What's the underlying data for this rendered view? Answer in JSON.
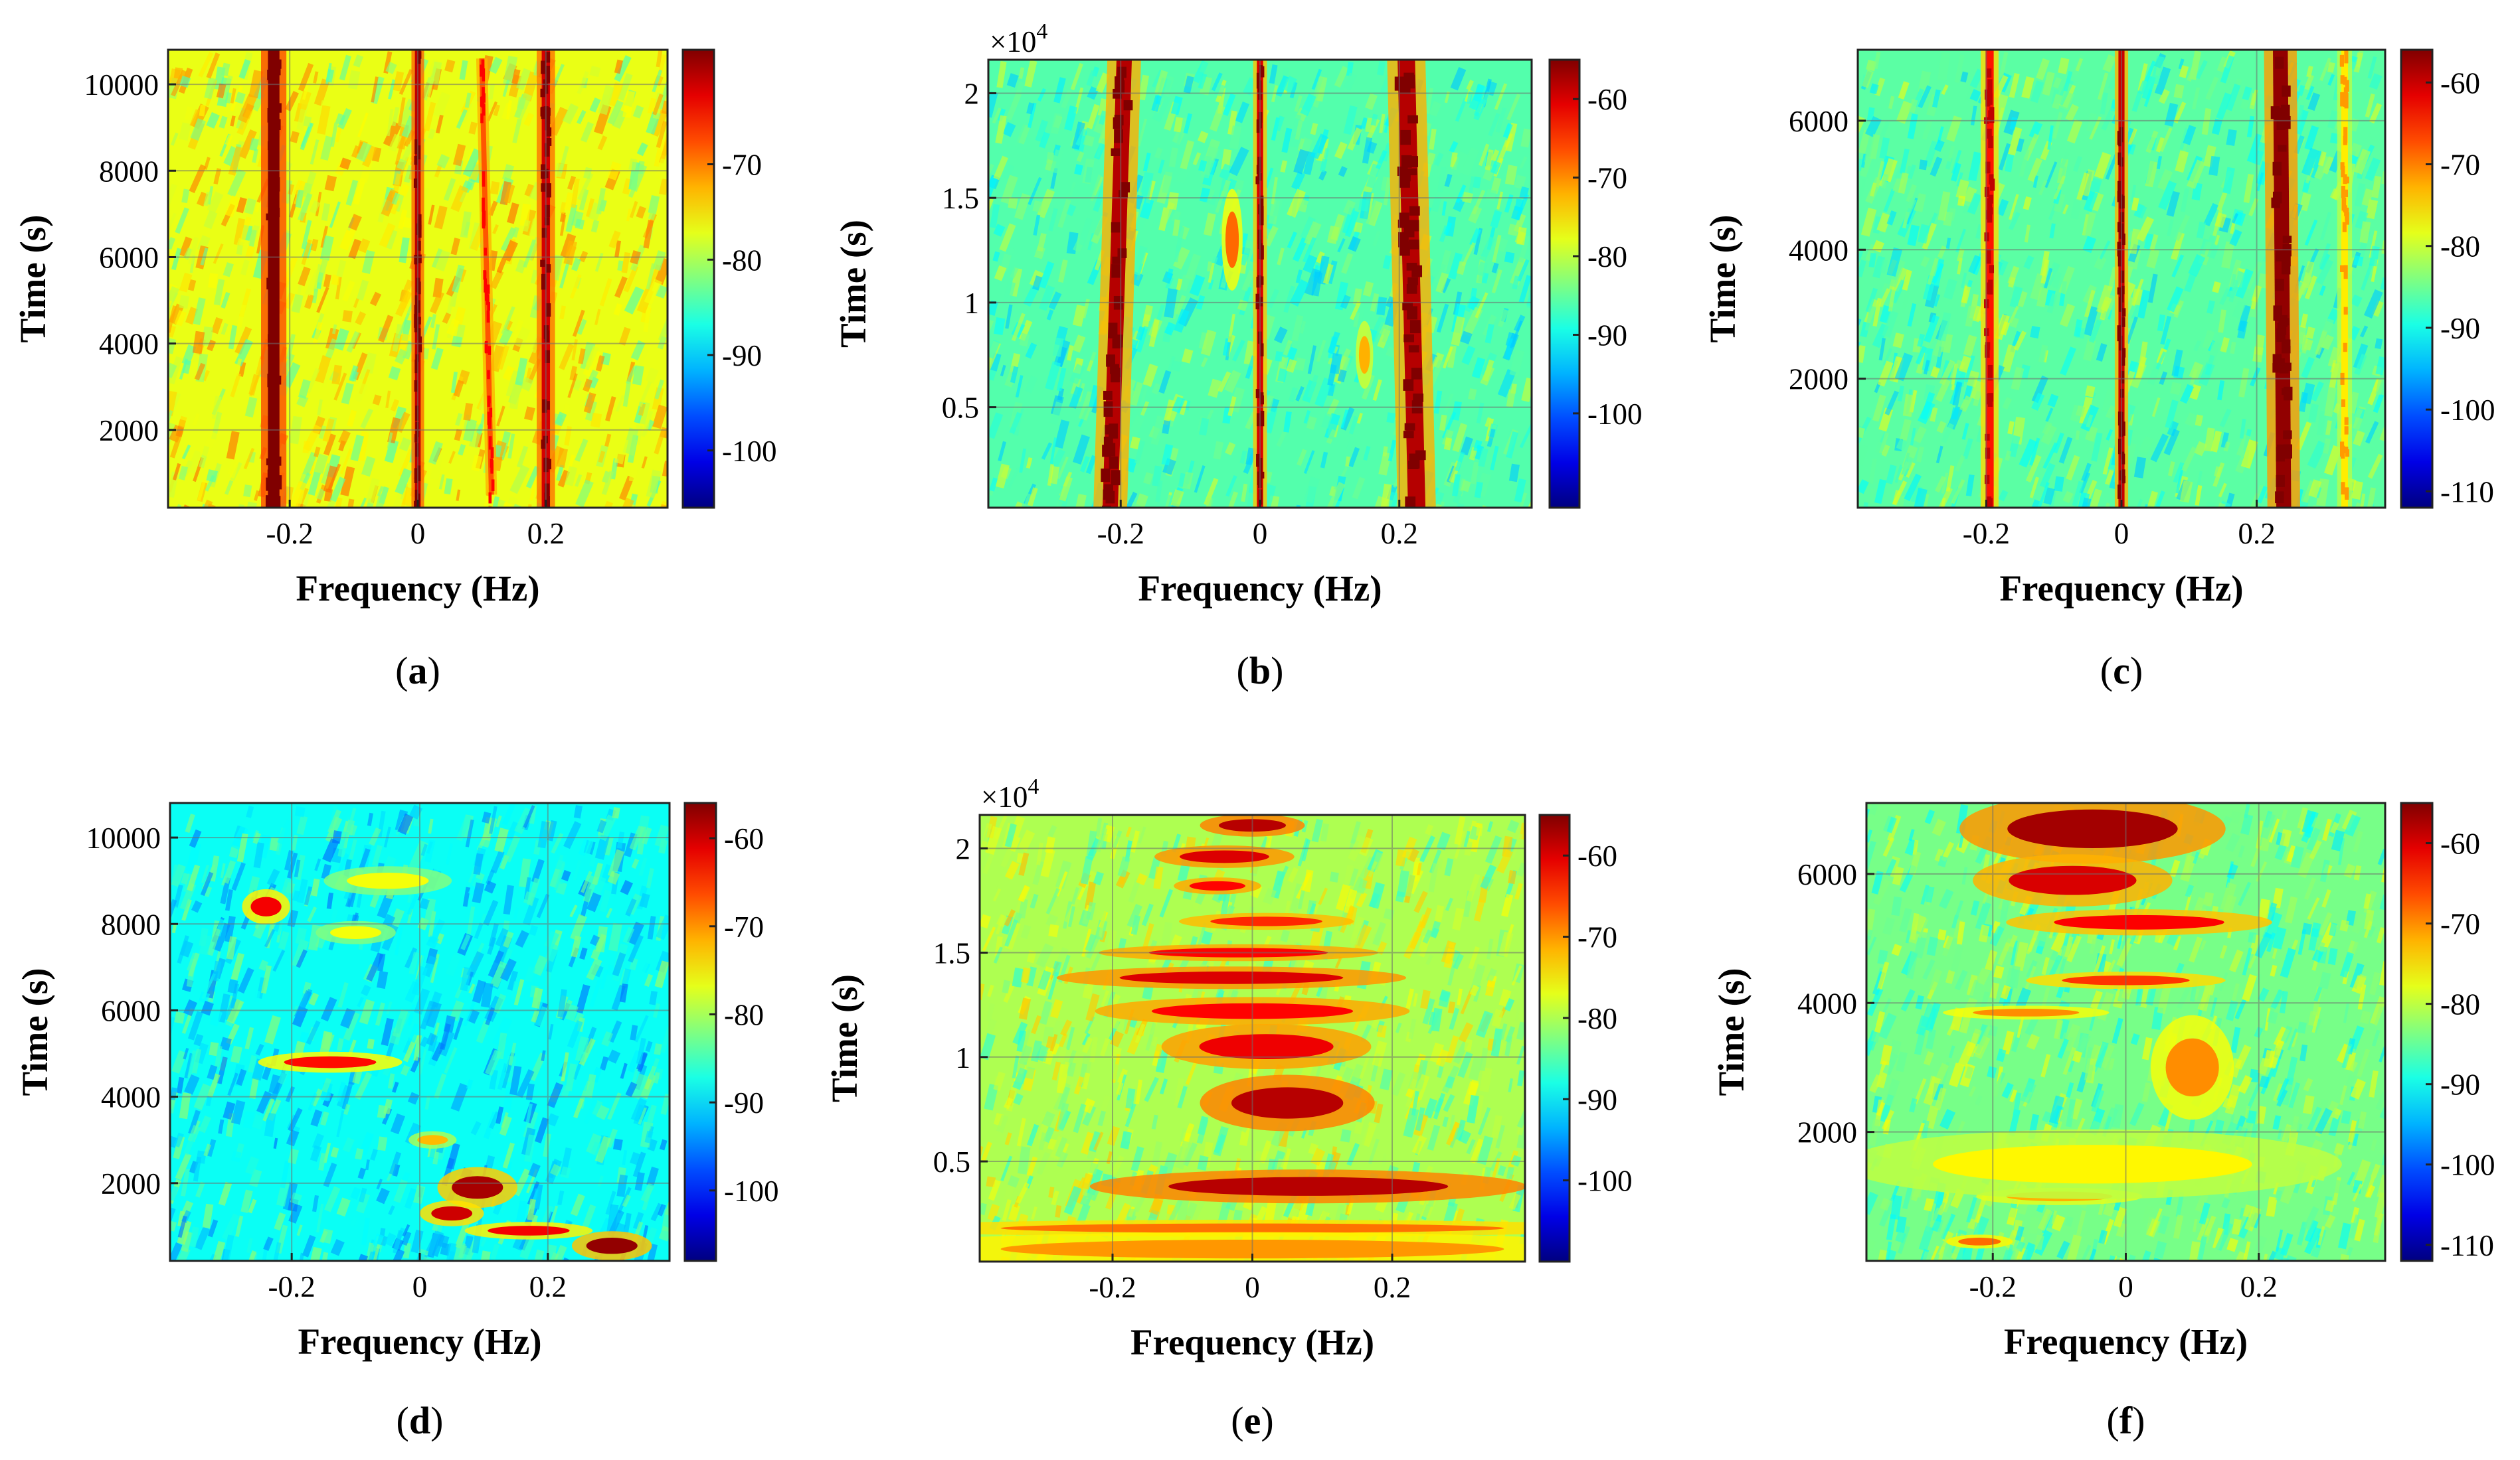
{
  "figure": {
    "panels": [
      "a",
      "b",
      "c",
      "d",
      "e",
      "f"
    ]
  },
  "chart_data": [
    {
      "panel": "a",
      "type": "heatmap",
      "caption": "a",
      "xlabel": "Frequency (Hz)",
      "ylabel": "Time (s)",
      "xlim": [
        -0.39,
        0.39
      ],
      "ylim": [
        200,
        10800
      ],
      "x_ticks": [
        -0.2,
        0,
        0.2
      ],
      "x_tick_labels": [
        "-0.2",
        "0",
        "0.2"
      ],
      "y_ticks": [
        2000,
        4000,
        6000,
        8000,
        10000
      ],
      "y_tick_labels": [
        "2000",
        "4000",
        "6000",
        "8000",
        "10000"
      ],
      "y_exponent": "",
      "grid": true,
      "colorbar": {
        "clim": [
          -106,
          -58
        ],
        "ticks": [
          -70,
          -80,
          -90,
          -100
        ],
        "tick_labels": [
          "-70",
          "-80",
          "-90",
          "-100"
        ]
      },
      "background_level": -77,
      "features": [
        {
          "kind": "line",
          "freq": -0.225,
          "freq_end": -0.225,
          "t_start": 200,
          "t_end": 10800,
          "level": -58,
          "width_hz": 0.018
        },
        {
          "kind": "line",
          "freq": 0.0,
          "freq_end": 0.0,
          "t_start": 200,
          "t_end": 10800,
          "level": -61,
          "width_hz": 0.009
        },
        {
          "kind": "line",
          "freq": 0.2,
          "freq_end": 0.2,
          "t_start": 200,
          "t_end": 10800,
          "level": -62,
          "width_hz": 0.013
        },
        {
          "kind": "line",
          "freq": 0.115,
          "freq_end": 0.1,
          "t_start": 500,
          "t_end": 10600,
          "level": -68,
          "width_hz": 0.008
        }
      ]
    },
    {
      "panel": "b",
      "type": "heatmap",
      "caption": "b",
      "xlabel": "Frequency (Hz)",
      "ylabel": "Time (s)",
      "xlim": [
        -0.39,
        0.39
      ],
      "ylim": [
        0.02,
        2.16
      ],
      "x_ticks": [
        -0.2,
        0,
        0.2
      ],
      "x_tick_labels": [
        "-0.2",
        "0",
        "0.2"
      ],
      "y_ticks": [
        0.5,
        1,
        1.5,
        2
      ],
      "y_tick_labels": [
        "0.5",
        "1",
        "1.5",
        "2"
      ],
      "y_exponent": "×10",
      "y_exponent_power": "4",
      "grid": true,
      "colorbar": {
        "clim": [
          -112,
          -55
        ],
        "ticks": [
          -60,
          -70,
          -80,
          -90,
          -100
        ],
        "tick_labels": [
          "-60",
          "-70",
          "-80",
          "-90",
          "-100"
        ]
      },
      "background_level": -86,
      "features": [
        {
          "kind": "line",
          "freq": -0.215,
          "freq_end": -0.195,
          "t_start": 0.02,
          "t_end": 2.16,
          "level": -58,
          "width_hz": 0.022
        },
        {
          "kind": "line",
          "freq": 0.0,
          "freq_end": 0.0,
          "t_start": 0.02,
          "t_end": 2.16,
          "level": -60,
          "width_hz": 0.009
        },
        {
          "kind": "line",
          "freq": 0.225,
          "freq_end": 0.21,
          "t_start": 0.02,
          "t_end": 2.16,
          "level": -58,
          "width_hz": 0.025
        },
        {
          "kind": "blob",
          "freq": -0.04,
          "t": 1.3,
          "rf": 0.012,
          "rt": 0.18,
          "level": -68
        },
        {
          "kind": "blob",
          "freq": 0.15,
          "t": 0.75,
          "rf": 0.01,
          "rt": 0.12,
          "level": -72
        }
      ]
    },
    {
      "panel": "c",
      "type": "heatmap",
      "caption": "c",
      "xlabel": "Frequency (Hz)",
      "ylabel": "Time (s)",
      "xlim": [
        -0.39,
        0.39
      ],
      "ylim": [
        0,
        7100
      ],
      "x_ticks": [
        -0.2,
        0,
        0.2
      ],
      "x_tick_labels": [
        "-0.2",
        "0",
        "0.2"
      ],
      "y_ticks": [
        2000,
        4000,
        6000
      ],
      "y_tick_labels": [
        "2000",
        "4000",
        "6000"
      ],
      "y_exponent": "",
      "grid": true,
      "colorbar": {
        "clim": [
          -112,
          -56
        ],
        "ticks": [
          -60,
          -70,
          -80,
          -90,
          -100,
          -110
        ],
        "tick_labels": [
          "-60",
          "-70",
          "-80",
          "-90",
          "-100",
          "-110"
        ]
      },
      "background_level": -86,
      "features": [
        {
          "kind": "line",
          "freq": -0.195,
          "freq_end": -0.195,
          "t_start": 0,
          "t_end": 7100,
          "level": -64,
          "width_hz": 0.012
        },
        {
          "kind": "line",
          "freq": 0.0,
          "freq_end": 0.0,
          "t_start": 0,
          "t_end": 7100,
          "level": -60,
          "width_hz": 0.009
        },
        {
          "kind": "line",
          "freq": 0.24,
          "freq_end": 0.235,
          "t_start": 0,
          "t_end": 7100,
          "level": -57,
          "width_hz": 0.022
        },
        {
          "kind": "line",
          "freq": 0.33,
          "freq_end": 0.33,
          "t_start": 0,
          "t_end": 7100,
          "level": -76,
          "width_hz": 0.01
        }
      ]
    },
    {
      "panel": "d",
      "type": "heatmap",
      "caption": "d",
      "xlabel": "Frequency (Hz)",
      "ylabel": "Time (s)",
      "xlim": [
        -0.39,
        0.39
      ],
      "ylim": [
        200,
        10800
      ],
      "x_ticks": [
        -0.2,
        0,
        0.2
      ],
      "x_tick_labels": [
        "-0.2",
        "0",
        "0.2"
      ],
      "y_ticks": [
        2000,
        4000,
        6000,
        8000,
        10000
      ],
      "y_tick_labels": [
        "2000",
        "4000",
        "6000",
        "8000",
        "10000"
      ],
      "y_exponent": "",
      "grid": true,
      "colorbar": {
        "clim": [
          -108,
          -56
        ],
        "ticks": [
          -60,
          -70,
          -80,
          -90,
          -100
        ],
        "tick_labels": [
          "-60",
          "-70",
          "-80",
          "-90",
          "-100"
        ]
      },
      "background_level": -88,
      "features": [
        {
          "kind": "blob",
          "freq": -0.24,
          "t": 8400,
          "rf": 0.03,
          "rt": 300,
          "level": -62
        },
        {
          "kind": "blob",
          "freq": -0.14,
          "t": 4800,
          "rf": 0.09,
          "rt": 180,
          "level": -63
        },
        {
          "kind": "blob",
          "freq": 0.09,
          "t": 1900,
          "rf": 0.05,
          "rt": 350,
          "level": -58
        },
        {
          "kind": "blob",
          "freq": 0.05,
          "t": 1300,
          "rf": 0.04,
          "rt": 220,
          "level": -60
        },
        {
          "kind": "blob",
          "freq": 0.17,
          "t": 900,
          "rf": 0.08,
          "rt": 150,
          "level": -62
        },
        {
          "kind": "blob",
          "freq": 0.3,
          "t": 550,
          "rf": 0.05,
          "rt": 250,
          "level": -57
        },
        {
          "kind": "blob",
          "freq": 0.02,
          "t": 3000,
          "rf": 0.03,
          "rt": 150,
          "level": -72
        },
        {
          "kind": "blob",
          "freq": -0.05,
          "t": 9000,
          "rf": 0.08,
          "rt": 250,
          "level": -76
        },
        {
          "kind": "blob",
          "freq": -0.1,
          "t": 7800,
          "rf": 0.05,
          "rt": 200,
          "level": -76
        }
      ]
    },
    {
      "panel": "e",
      "type": "heatmap",
      "caption": "e",
      "xlabel": "Frequency (Hz)",
      "ylabel": "Time (s)",
      "xlim": [
        -0.39,
        0.39
      ],
      "ylim": [
        0.02,
        2.16
      ],
      "x_ticks": [
        -0.2,
        0,
        0.2
      ],
      "x_tick_labels": [
        "-0.2",
        "0",
        "0.2"
      ],
      "y_ticks": [
        0.5,
        1,
        1.5,
        2
      ],
      "y_tick_labels": [
        "0.5",
        "1",
        "1.5",
        "2"
      ],
      "y_exponent": "×10",
      "y_exponent_power": "4",
      "grid": true,
      "colorbar": {
        "clim": [
          -110,
          -55
        ],
        "ticks": [
          -60,
          -70,
          -80,
          -90,
          -100
        ],
        "tick_labels": [
          "-60",
          "-70",
          "-80",
          "-90",
          "-100"
        ]
      },
      "background_level": -80,
      "features": [
        {
          "kind": "blob",
          "freq": 0.08,
          "t": 0.38,
          "rf": 0.25,
          "rt": 0.06,
          "level": -58
        },
        {
          "kind": "blob",
          "freq": 0.05,
          "t": 0.78,
          "rf": 0.1,
          "rt": 0.1,
          "level": -58
        },
        {
          "kind": "blob",
          "freq": 0.02,
          "t": 1.05,
          "rf": 0.12,
          "rt": 0.08,
          "level": -61
        },
        {
          "kind": "blob",
          "freq": 0.0,
          "t": 1.22,
          "rf": 0.18,
          "rt": 0.05,
          "level": -62
        },
        {
          "kind": "blob",
          "freq": -0.03,
          "t": 1.38,
          "rf": 0.2,
          "rt": 0.04,
          "level": -60
        },
        {
          "kind": "blob",
          "freq": -0.02,
          "t": 1.5,
          "rf": 0.16,
          "rt": 0.03,
          "level": -62
        },
        {
          "kind": "blob",
          "freq": 0.02,
          "t": 1.65,
          "rf": 0.1,
          "rt": 0.03,
          "level": -64
        },
        {
          "kind": "blob",
          "freq": -0.05,
          "t": 1.82,
          "rf": 0.05,
          "rt": 0.03,
          "level": -62
        },
        {
          "kind": "blob",
          "freq": -0.04,
          "t": 1.96,
          "rf": 0.08,
          "rt": 0.04,
          "level": -60
        },
        {
          "kind": "blob",
          "freq": 0.0,
          "t": 2.11,
          "rf": 0.06,
          "rt": 0.04,
          "level": -58
        },
        {
          "kind": "blob",
          "freq": 0.0,
          "t": 0.18,
          "rf": 0.45,
          "rt": 0.03,
          "level": -68
        },
        {
          "kind": "blob",
          "freq": 0.0,
          "t": 0.08,
          "rf": 0.45,
          "rt": 0.06,
          "level": -70
        }
      ]
    },
    {
      "panel": "f",
      "type": "heatmap",
      "caption": "f",
      "xlabel": "Frequency (Hz)",
      "ylabel": "Time (s)",
      "xlim": [
        -0.39,
        0.39
      ],
      "ylim": [
        0,
        7100
      ],
      "x_ticks": [
        -0.2,
        0,
        0.2
      ],
      "x_tick_labels": [
        "-0.2",
        "0",
        "0.2"
      ],
      "y_ticks": [
        2000,
        4000,
        6000
      ],
      "y_tick_labels": [
        "2000",
        "4000",
        "6000"
      ],
      "y_exponent": "",
      "grid": true,
      "colorbar": {
        "clim": [
          -112,
          -55
        ],
        "ticks": [
          -60,
          -70,
          -80,
          -90,
          -100,
          -110
        ],
        "tick_labels": [
          "-60",
          "-70",
          "-80",
          "-90",
          "-100",
          "-110"
        ]
      },
      "background_level": -84,
      "features": [
        {
          "kind": "blob",
          "freq": -0.05,
          "t": 6700,
          "rf": 0.16,
          "rt": 400,
          "level": -57
        },
        {
          "kind": "blob",
          "freq": -0.08,
          "t": 5900,
          "rf": 0.12,
          "rt": 300,
          "level": -60
        },
        {
          "kind": "blob",
          "freq": 0.02,
          "t": 5250,
          "rf": 0.16,
          "rt": 150,
          "level": -62
        },
        {
          "kind": "blob",
          "freq": 0.0,
          "t": 4350,
          "rf": 0.12,
          "rt": 100,
          "level": -65
        },
        {
          "kind": "blob",
          "freq": -0.15,
          "t": 3850,
          "rf": 0.1,
          "rt": 80,
          "level": -70
        },
        {
          "kind": "blob",
          "freq": 0.1,
          "t": 3000,
          "rf": 0.05,
          "rt": 600,
          "level": -70
        },
        {
          "kind": "blob",
          "freq": -0.1,
          "t": 1000,
          "rf": 0.1,
          "rt": 100,
          "level": -72
        },
        {
          "kind": "blob",
          "freq": -0.22,
          "t": 300,
          "rf": 0.04,
          "rt": 80,
          "level": -68
        },
        {
          "kind": "blob",
          "freq": -0.05,
          "t": 1500,
          "rf": 0.3,
          "rt": 400,
          "level": -76
        }
      ]
    }
  ]
}
